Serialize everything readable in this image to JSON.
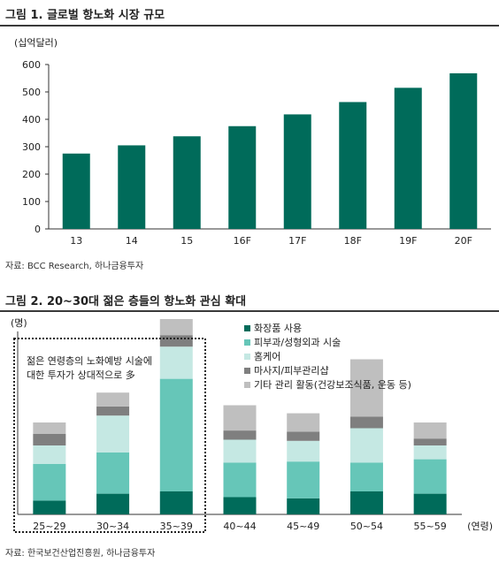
{
  "figure1": {
    "title": "그림 1. 글로벌 항노화 시장 규모",
    "source": "자료: BCC Research, 하나금융투자"
  },
  "figure2": {
    "title": "그림 2. 20~30대 젊은 층들의 항노화 관심 확대",
    "source": "자료: 한국보건산업진흥원, 하나금융투자",
    "annotation": [
      "젊은 연령층의 노화예방 시술에",
      "대한 투자가 상대적으로 多"
    ]
  },
  "chart_data": [
    {
      "type": "bar",
      "title": "그림 1. 글로벌 항노화 시장 규모",
      "ylabel": "(십억달러)",
      "xlabel": "",
      "categories": [
        "13",
        "14",
        "15",
        "16F",
        "17F",
        "18F",
        "19F",
        "20F"
      ],
      "values": [
        275,
        305,
        338,
        375,
        418,
        463,
        515,
        568
      ],
      "ylim": [
        0,
        600
      ],
      "yticks": [
        0,
        100,
        200,
        300,
        400,
        500,
        600
      ],
      "bar_color": "#006b5a",
      "grid": false
    },
    {
      "type": "bar",
      "stacked": true,
      "title": "그림 2. 20~30대 젊은 층들의 항노화 관심 확대",
      "ylabel": "(명)",
      "xlabel": "(연령)",
      "categories": [
        "25~29",
        "30~34",
        "35~39",
        "40~44",
        "45~49",
        "50~54",
        "55~59"
      ],
      "legend_position": "top-right",
      "series": [
        {
          "name": "화장품 사용",
          "color": "#006b5a",
          "values": [
            12,
            18,
            20,
            15,
            14,
            20,
            18
          ]
        },
        {
          "name": "피부과/성형외과 시술",
          "color": "#66c6b8",
          "values": [
            32,
            36,
            98,
            30,
            32,
            25,
            30
          ]
        },
        {
          "name": "홈케어",
          "color": "#c5e8e3",
          "values": [
            16,
            32,
            28,
            20,
            18,
            30,
            12
          ]
        },
        {
          "name": "마사지/피부관리샵",
          "color": "#7f7f7f",
          "values": [
            10,
            8,
            10,
            8,
            8,
            10,
            6
          ]
        },
        {
          "name": "기타 관리 활동(건강보조식품, 운동 등)",
          "color": "#bfbfbf",
          "values": [
            10,
            12,
            14,
            22,
            16,
            50,
            14
          ]
        }
      ]
    }
  ]
}
